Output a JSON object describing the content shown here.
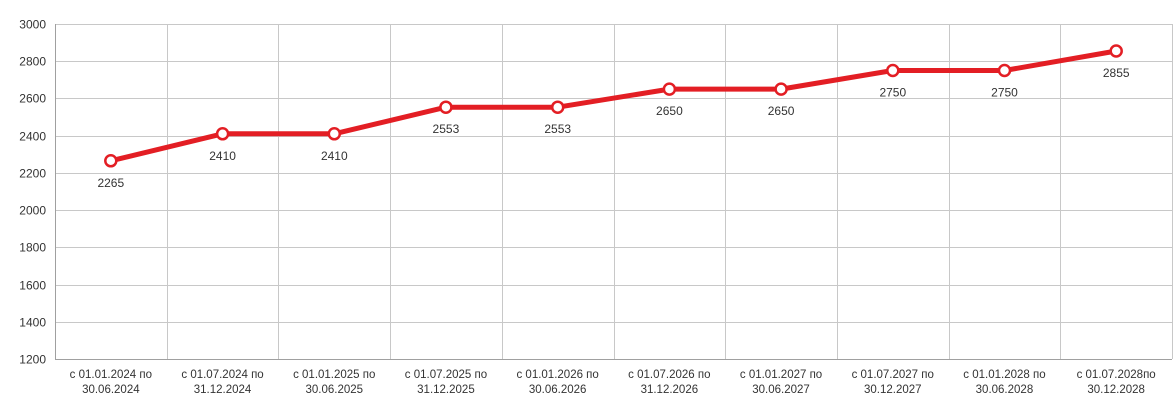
{
  "chart_data": {
    "type": "line",
    "categories": [
      [
        "с 01.01.2024 по",
        "30.06.2024"
      ],
      [
        "с 01.07.2024 по",
        "31.12.2024"
      ],
      [
        "с 01.01.2025 по",
        "30.06.2025"
      ],
      [
        "с 01.07.2025 по",
        "31.12.2025"
      ],
      [
        "с 01.01.2026 по",
        "30.06.2026"
      ],
      [
        "с 01.07.2026 по",
        "31.12.2026"
      ],
      [
        "с 01.01.2027 по",
        "30.06.2027"
      ],
      [
        "с 01.07.2027 по",
        "30.12.2027"
      ],
      [
        "с 01.01.2028 по",
        "30.06.2028"
      ],
      [
        "с 01.07.2028по",
        "30.12.2028"
      ]
    ],
    "series": [
      {
        "values": [
          2265,
          2410,
          2410,
          2553,
          2553,
          2650,
          2650,
          2750,
          2750,
          2855
        ],
        "labels": [
          "2265",
          "2410",
          "2410",
          "2553",
          "2553",
          "2650",
          "2650",
          "2750",
          "2750",
          "2855"
        ],
        "color": "#e31e24"
      }
    ],
    "ylim": [
      1200,
      3000
    ],
    "yticks": [
      1200,
      1400,
      1600,
      1800,
      2000,
      2200,
      2400,
      2600,
      2800,
      3000
    ],
    "grid": true,
    "title": "",
    "xlabel": "",
    "ylabel": ""
  }
}
